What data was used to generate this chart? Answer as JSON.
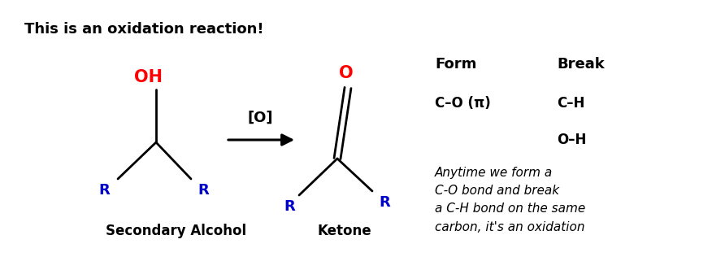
{
  "title": "This is an oxidation reaction!",
  "bg_color": "#ffffff",
  "title_color": "#000000",
  "oh_color": "#ff0000",
  "r_color": "#0000cc",
  "o_color": "#ff0000",
  "bond_color": "#000000",
  "arrow_label": "[O]",
  "sec_alcohol_label": "Secondary Alcohol",
  "ketone_label": "Ketone",
  "form_header": "Form",
  "break_header": "Break",
  "form_item1": "C–O (π)",
  "break_item1": "C–H",
  "break_item2": "O–H",
  "italic_text": "Anytime we form a\nC-O bond and break\na C-H bond on the same\ncarbon, it's an oxidation"
}
